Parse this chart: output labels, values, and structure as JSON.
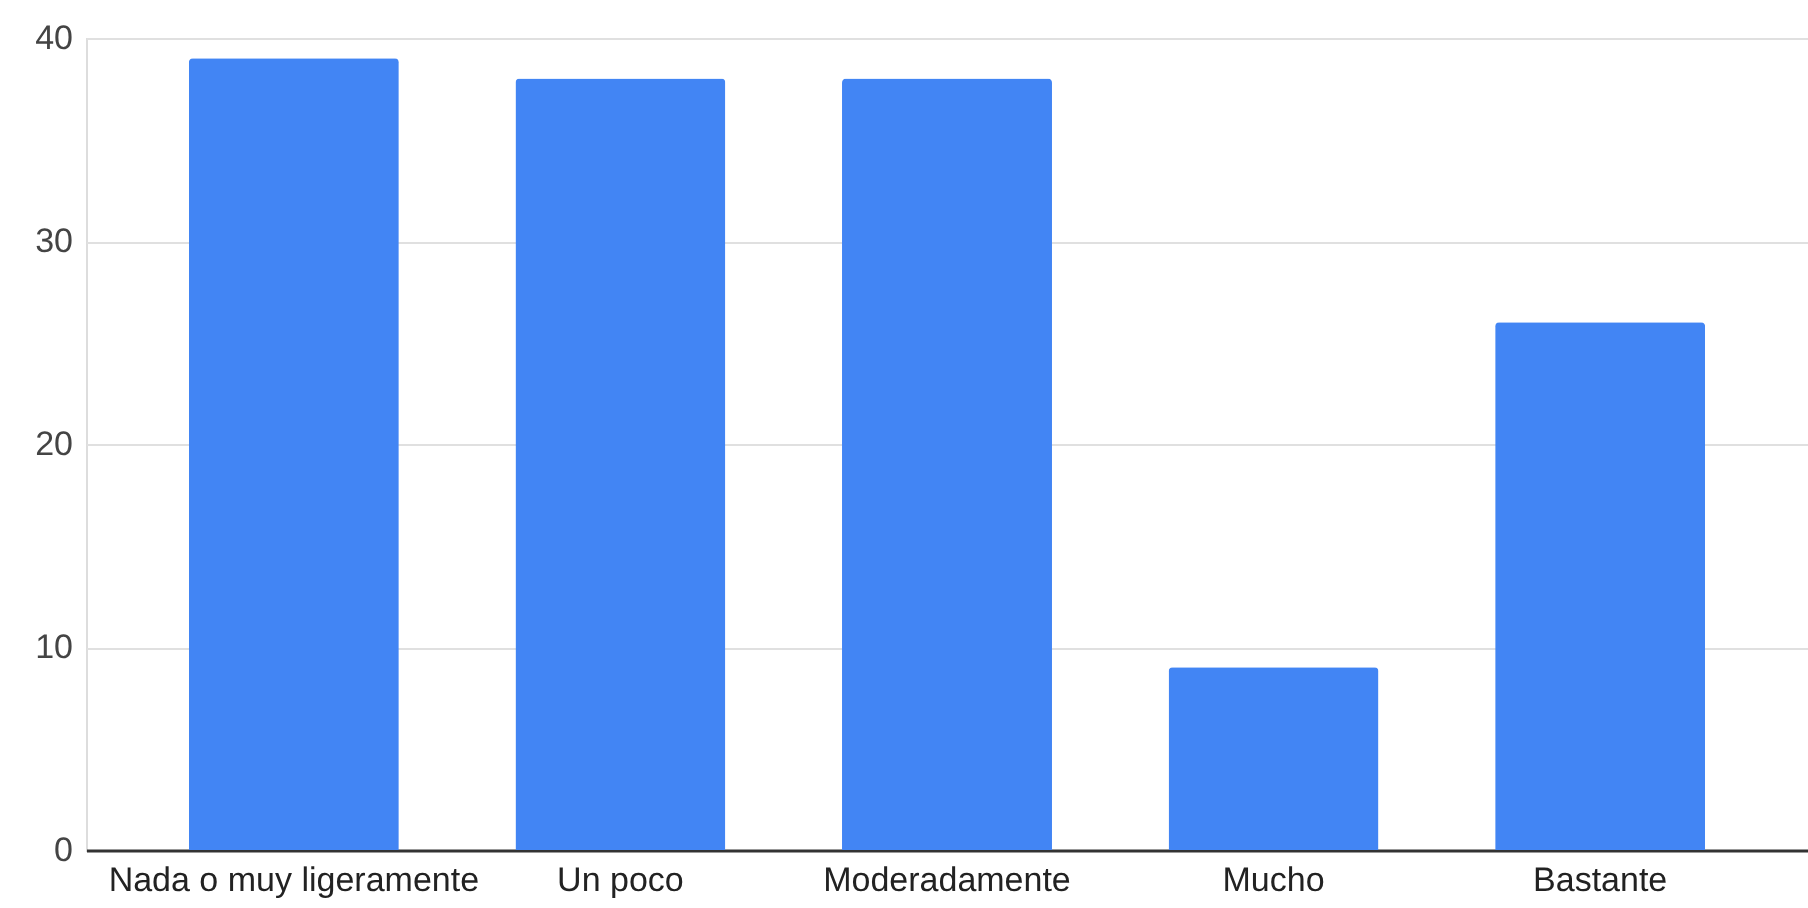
{
  "chart_data": {
    "type": "bar",
    "categories": [
      "Nada o muy ligeramente",
      "Un poco",
      "Moderadamente",
      "Mucho",
      "Bastante"
    ],
    "values": [
      39,
      38,
      38,
      9,
      26
    ],
    "color": "#4285f4",
    "ylim": [
      0,
      40
    ],
    "yticks": [
      0,
      10,
      20,
      30,
      40
    ],
    "grid": "y"
  }
}
